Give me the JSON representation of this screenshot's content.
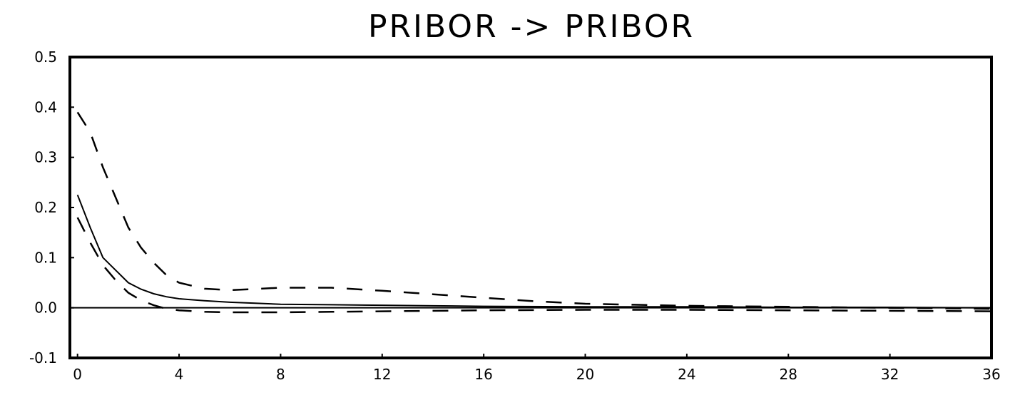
{
  "chart_data": {
    "type": "line",
    "title": "PRIBOR -> PRIBOR",
    "xlabel": "",
    "ylabel": "",
    "xlim": [
      -0.3,
      36
    ],
    "ylim": [
      -0.1,
      0.5
    ],
    "x_ticks": [
      "0",
      "4",
      "8",
      "12",
      "16",
      "20",
      "24",
      "28",
      "32",
      "36"
    ],
    "y_ticks": [
      "0.5",
      "0.4",
      "0.3",
      "0.2",
      "0.1",
      "0.0",
      "-0.1"
    ],
    "zero_line": true,
    "grid": false,
    "legend": "none",
    "series": [
      {
        "style": "solid",
        "x": [
          0,
          0.5,
          1,
          1.5,
          2,
          2.5,
          3,
          3.5,
          4,
          5,
          6,
          7,
          8,
          10,
          12,
          14,
          16,
          20,
          24,
          28,
          32,
          36
        ],
        "values": [
          0.225,
          0.16,
          0.1,
          0.075,
          0.05,
          0.037,
          0.028,
          0.022,
          0.018,
          0.014,
          0.011,
          0.009,
          0.007,
          0.006,
          0.005,
          0.004,
          0.003,
          0.002,
          0.002,
          0.001,
          0.001,
          0.0
        ]
      },
      {
        "style": "dashed",
        "x": [
          0,
          0.5,
          1,
          1.5,
          2,
          2.5,
          3,
          3.5,
          4,
          5,
          6,
          8,
          10,
          12,
          14,
          16,
          18,
          20,
          24,
          28,
          32,
          36
        ],
        "values": [
          0.39,
          0.35,
          0.28,
          0.22,
          0.16,
          0.12,
          0.09,
          0.065,
          0.05,
          0.038,
          0.035,
          0.04,
          0.04,
          0.034,
          0.027,
          0.02,
          0.013,
          0.008,
          0.004,
          0.002,
          0.0,
          -0.002
        ]
      },
      {
        "style": "dashed",
        "x": [
          0,
          0.5,
          1,
          1.5,
          2,
          2.5,
          3,
          3.5,
          4,
          5,
          6,
          8,
          10,
          12,
          14,
          16,
          20,
          24,
          28,
          32,
          36
        ],
        "values": [
          0.18,
          0.13,
          0.085,
          0.055,
          0.03,
          0.015,
          0.005,
          -0.002,
          -0.005,
          -0.008,
          -0.009,
          -0.009,
          -0.008,
          -0.007,
          -0.006,
          -0.005,
          -0.004,
          -0.004,
          -0.005,
          -0.006,
          -0.007
        ]
      }
    ]
  }
}
